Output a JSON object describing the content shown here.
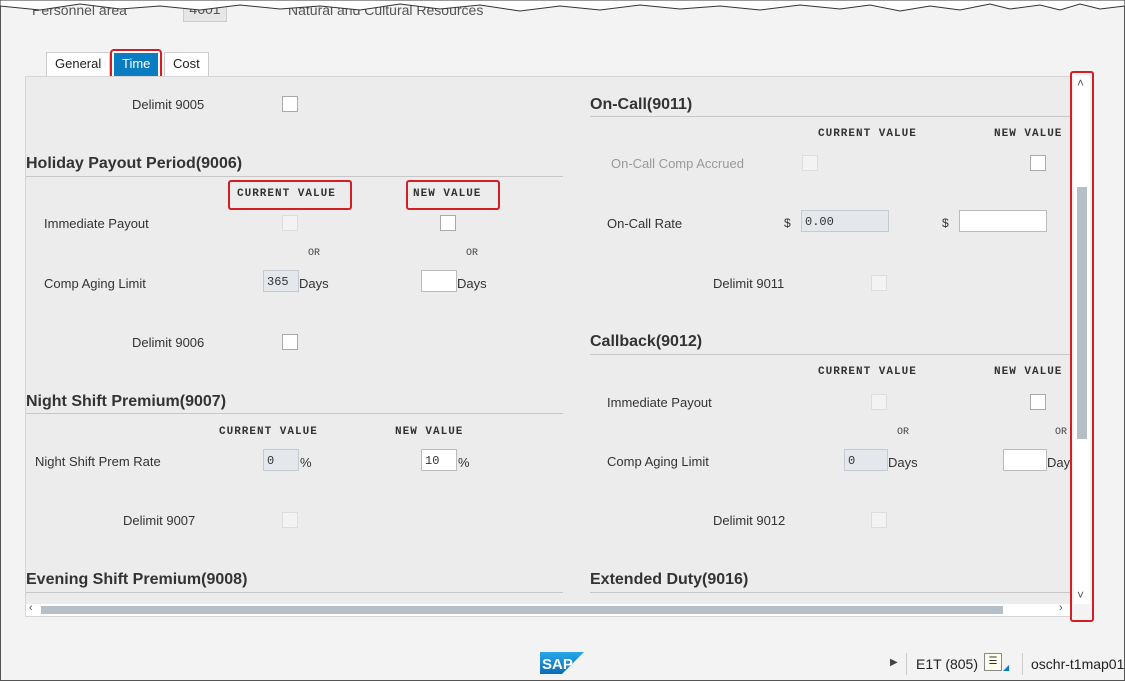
{
  "header": {
    "personnel_area_label": "Personnel area",
    "personnel_area_value": "4601",
    "personnel_area_text": "Natural and Cultural Resources"
  },
  "tabs": [
    {
      "label": "General"
    },
    {
      "label": "Time",
      "active": true
    },
    {
      "label": "Cost"
    }
  ],
  "left": {
    "delimit_9005": "Delimit 9005",
    "holiday": {
      "title": "Holiday Payout Period(9006)",
      "current": "CURRENT VALUE",
      "new": "NEW VALUE",
      "immediate": "Immediate Payout",
      "or": "OR",
      "comp_aging": "Comp Aging Limit",
      "current_days_value": "365",
      "days": "Days",
      "new_days_value": "",
      "delimit": "Delimit 9006"
    },
    "night": {
      "title": "Night Shift Premium(9007)",
      "current": "CURRENT VALUE",
      "new": "NEW VALUE",
      "rate": "Night Shift Prem Rate",
      "current_value": "0",
      "new_value": "10",
      "pct": "%",
      "delimit": "Delimit 9007"
    },
    "evening": {
      "title": "Evening Shift Premium(9008)"
    }
  },
  "right": {
    "oncall": {
      "title": "On-Call(9011)",
      "current": "CURRENT VALUE",
      "new": "NEW VALUE",
      "accrued": "On-Call Comp Accrued",
      "rate": "On-Call Rate",
      "currency": "$",
      "current_value": "0.00",
      "new_value": "",
      "delimit": "Delimit 9011"
    },
    "callback": {
      "title": "Callback(9012)",
      "current": "CURRENT VALUE",
      "new": "NEW VALUE",
      "immediate": "Immediate Payout",
      "or": "OR",
      "comp_aging": "Comp Aging Limit",
      "current_days_value": "0",
      "days": "Days",
      "new_days_value": "",
      "delimit": "Delimit 9012"
    },
    "extended": {
      "title": "Extended Duty(9016)"
    }
  },
  "status": {
    "system": "E1T (805)",
    "server": "oschr-t1map01",
    "logo": "SAP"
  },
  "colors": {
    "accent": "#0a7cc1",
    "highlight": "#d21f26"
  }
}
